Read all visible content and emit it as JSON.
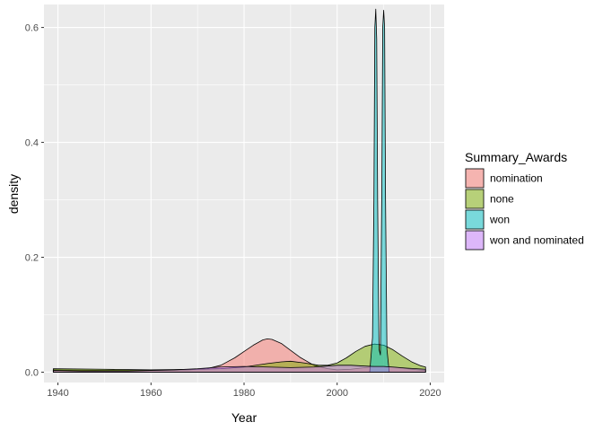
{
  "chart_data": {
    "type": "area",
    "subtype": "density",
    "title": "",
    "xlabel": "Year",
    "ylabel": "density",
    "xlim": [
      1937,
      2023
    ],
    "ylim": [
      -0.018,
      0.64
    ],
    "xticks": [
      1940,
      1960,
      1980,
      2000,
      2020
    ],
    "yticks": [
      0.0,
      0.2,
      0.4,
      0.6
    ],
    "ytick_labels": [
      "0.0",
      "0.2",
      "0.4",
      "0.6"
    ],
    "grid": true,
    "legend_title": "Summary_Awards",
    "legend_position": "right",
    "series": [
      {
        "name": "nomination",
        "color": "#F8766D",
        "x": [
          1939,
          1950,
          1960,
          1968,
          1972,
          1975,
          1978,
          1980,
          1982,
          1984,
          1985,
          1986,
          1988,
          1990,
          1992,
          1995,
          1998,
          2000,
          2003,
          2006,
          2008,
          2010,
          2013,
          2016,
          2019
        ],
        "y": [
          0.004,
          0.003,
          0.003,
          0.004,
          0.006,
          0.012,
          0.025,
          0.036,
          0.047,
          0.056,
          0.058,
          0.057,
          0.05,
          0.038,
          0.026,
          0.012,
          0.006,
          0.004,
          0.005,
          0.008,
          0.01,
          0.01,
          0.008,
          0.005,
          0.003
        ]
      },
      {
        "name": "none",
        "color": "#7CAE00",
        "x": [
          1939,
          1950,
          1960,
          1970,
          1975,
          1980,
          1985,
          1988,
          1990,
          1993,
          1996,
          1998,
          2000,
          2002,
          2004,
          2006,
          2008,
          2010,
          2012,
          2014,
          2016,
          2018,
          2019
        ],
        "y": [
          0.006,
          0.005,
          0.004,
          0.005,
          0.006,
          0.009,
          0.015,
          0.018,
          0.019,
          0.016,
          0.012,
          0.012,
          0.016,
          0.025,
          0.036,
          0.045,
          0.049,
          0.047,
          0.039,
          0.028,
          0.018,
          0.011,
          0.009
        ]
      },
      {
        "name": "won",
        "color": "#00BFC4",
        "x": [
          1939,
          1960,
          1990,
          2005,
          2007,
          2007.6,
          2007.9,
          2008.1,
          2008.3,
          2008.5,
          2008.7,
          2009.0,
          2009.3,
          2009.6,
          2009.8,
          2010.0,
          2010.2,
          2010.4,
          2010.7,
          2011.2,
          2013,
          2016,
          2019
        ],
        "y": [
          0.0,
          0.0,
          0.0,
          0.0,
          0.0,
          0.06,
          0.3,
          0.6,
          0.632,
          0.58,
          0.3,
          0.04,
          0.03,
          0.32,
          0.6,
          0.63,
          0.6,
          0.3,
          0.04,
          0.0,
          0.0,
          0.0,
          0.0
        ]
      },
      {
        "name": "won and nominated",
        "color": "#C77CFF",
        "x": [
          1939,
          1945,
          1950,
          1955,
          1960,
          1965,
          1970,
          1975,
          1980,
          1985,
          1990,
          1995,
          2000,
          2003,
          2005,
          2008,
          2010,
          2012,
          2015,
          2019
        ],
        "y": [
          0.003,
          0.002,
          0.002,
          0.002,
          0.003,
          0.004,
          0.006,
          0.009,
          0.01,
          0.009,
          0.008,
          0.009,
          0.012,
          0.012,
          0.011,
          0.01,
          0.01,
          0.009,
          0.007,
          0.005
        ]
      }
    ]
  }
}
